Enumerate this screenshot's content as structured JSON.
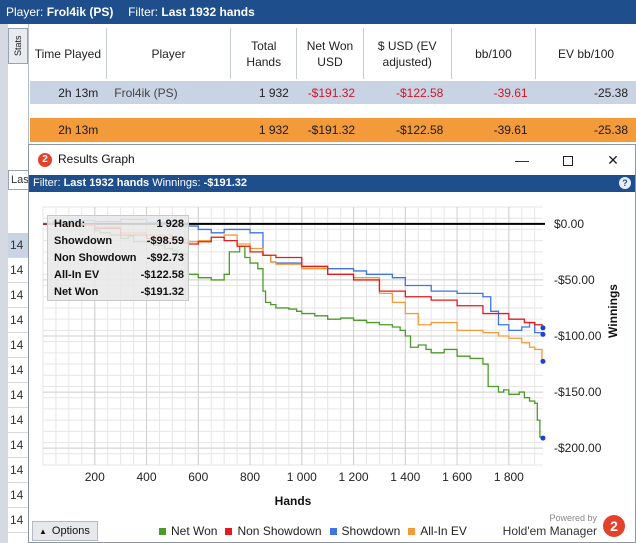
{
  "stats_window": {
    "header": {
      "player_label": "Player:",
      "player_value": "Frol4ik (PS)",
      "filter_label": "Filter:",
      "filter_value": "Last 1932 hands"
    },
    "stats_tab": "Stats",
    "columns": [
      "Time Played",
      "Player",
      "Total Hands",
      "Net Won USD",
      "$ USD (EV adjusted)",
      "bb/100",
      "EV bb/100"
    ],
    "rows": [
      {
        "time": "2h 13m",
        "player": "Frol4ik (PS)",
        "hands": "1 932",
        "net_won": "-$191.32",
        "ev_adjusted": "-$122.58",
        "bb100": "-39.61",
        "ev_bb100": "-25.38"
      }
    ],
    "total": {
      "time": "2h 13m",
      "hands": "1 932",
      "net_won": "-$191.32",
      "ev_adjusted": "-$122.58",
      "bb100": "-39.61",
      "ev_bb100": "-25.38"
    },
    "filter_box": "Las",
    "left_list": [
      "14",
      "14",
      "14",
      "14",
      "14",
      "14",
      "14",
      "14",
      "14",
      "14",
      "14",
      "14",
      "14",
      "14"
    ]
  },
  "graph_window": {
    "title": "Results Graph",
    "filter_label": "Filter:",
    "filter_value": "Last 1932 hands",
    "winnings_label": "Winnings:",
    "winnings_value": "-$191.32",
    "help_label": "?",
    "info": {
      "hand_label": "Hand:",
      "hand_value": "1 928",
      "showdown_label": "Showdown",
      "showdown_value": "-$98.59",
      "non_showdown_label": "Non Showdown",
      "non_showdown_value": "-$92.73",
      "allin_ev_label": "All-In EV",
      "allin_ev_value": "-$122.58",
      "net_won_label": "Net Won",
      "net_won_value": "-$191.32"
    },
    "options_label": "Options",
    "powered_by": "Powered by",
    "brand": "Hold'em Manager",
    "brand_icon": "2"
  },
  "chart_data": {
    "type": "line",
    "xlabel": "Hands",
    "ylabel": "Winnings",
    "xlim": [
      0,
      1932
    ],
    "ylim": [
      -215,
      15
    ],
    "x_ticks": [
      200,
      400,
      600,
      800,
      1000,
      1200,
      1400,
      1600,
      1800
    ],
    "x_tick_labels": [
      "200",
      "400",
      "600",
      "800",
      "1 000",
      "1 200",
      "1 400",
      "1 600",
      "1 800"
    ],
    "y_ticks": [
      0,
      -50,
      -100,
      -150,
      -200
    ],
    "y_tick_labels": [
      "$0.00",
      "-$50.00",
      "-$100.00",
      "-$150.00",
      "-$200.00"
    ],
    "grid": true,
    "legend_position": "bottom",
    "series": [
      {
        "name": "Net Won",
        "color": "#4c9a2a",
        "x": [
          0,
          40,
          80,
          100,
          150,
          200,
          220,
          260,
          300,
          330,
          350,
          400,
          430,
          470,
          500,
          520,
          560,
          600,
          650,
          700,
          720,
          760,
          780,
          800,
          830,
          850,
          860,
          880,
          900,
          950,
          980,
          1000,
          1050,
          1100,
          1150,
          1200,
          1250,
          1300,
          1350,
          1380,
          1400,
          1420,
          1450,
          1480,
          1500,
          1550,
          1600,
          1650,
          1700,
          1720,
          1760,
          1780,
          1800,
          1840,
          1860,
          1880,
          1900,
          1910,
          1920,
          1928
        ],
        "values": [
          0,
          2,
          1,
          -2,
          -1,
          -6,
          -8,
          -10,
          -13,
          -11,
          -16,
          -17,
          -19,
          -22,
          -24,
          -27,
          -45,
          -48,
          -50,
          -45,
          -25,
          -20,
          -30,
          -35,
          -40,
          -60,
          -70,
          -72,
          -75,
          -76,
          -78,
          -80,
          -82,
          -85,
          -84,
          -86,
          -88,
          -90,
          -92,
          -95,
          -100,
          -110,
          -108,
          -112,
          -115,
          -112,
          -118,
          -120,
          -125,
          -145,
          -150,
          -148,
          -152,
          -150,
          -155,
          -158,
          -160,
          -175,
          -190,
          -191
        ]
      },
      {
        "name": "Non Showdown",
        "color": "#e31b1b",
        "x": [
          0,
          100,
          200,
          300,
          400,
          500,
          560,
          600,
          650,
          700,
          750,
          800,
          850,
          900,
          1000,
          1100,
          1200,
          1300,
          1400,
          1500,
          1600,
          1700,
          1800,
          1860,
          1900,
          1928
        ],
        "values": [
          0,
          -1,
          -4,
          -10,
          -13,
          -17,
          -18,
          -16,
          -12,
          -15,
          -20,
          -25,
          -28,
          -30,
          -38,
          -45,
          -50,
          -60,
          -65,
          -68,
          -73,
          -80,
          -85,
          -88,
          -90,
          -92.73
        ]
      },
      {
        "name": "Showdown",
        "color": "#3f74e4",
        "x": [
          0,
          100,
          200,
          300,
          400,
          500,
          600,
          650,
          700,
          800,
          850,
          880,
          900,
          1000,
          1100,
          1200,
          1250,
          1300,
          1350,
          1400,
          1500,
          1600,
          1700,
          1730,
          1760,
          1800,
          1850,
          1880,
          1900,
          1928
        ],
        "values": [
          0,
          3,
          2,
          4,
          1,
          -2,
          -5,
          -8,
          -5,
          -8,
          -28,
          -34,
          -35,
          -38,
          -40,
          -42,
          -45,
          -45,
          -48,
          -55,
          -60,
          -62,
          -65,
          -78,
          -90,
          -95,
          -92,
          -88,
          -97,
          -98.59
        ]
      },
      {
        "name": "All-In EV",
        "color": "#f59a3a",
        "x": [
          0,
          100,
          200,
          300,
          400,
          500,
          560,
          600,
          650,
          700,
          750,
          800,
          850,
          880,
          900,
          1000,
          1100,
          1200,
          1300,
          1350,
          1400,
          1450,
          1500,
          1600,
          1700,
          1760,
          1800,
          1850,
          1880,
          1900,
          1928
        ],
        "values": [
          0,
          -1,
          -3,
          -8,
          -10,
          -14,
          -16,
          -15,
          -12,
          -10,
          -18,
          -22,
          -28,
          -34,
          -36,
          -40,
          -45,
          -48,
          -62,
          -70,
          -80,
          -90,
          -88,
          -95,
          -97,
          -100,
          -102,
          -106,
          -110,
          -112,
          -122.58
        ]
      }
    ]
  }
}
